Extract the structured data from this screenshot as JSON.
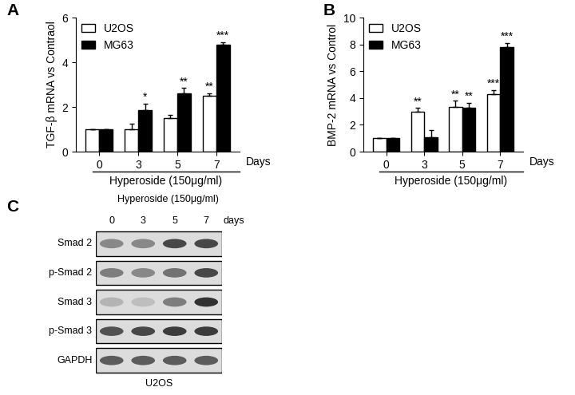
{
  "chart_data": [
    {
      "type": "bar",
      "title": "A",
      "ylabel": "TGF-β mRNA vs Contraol",
      "xlabel": "Days",
      "annotations": [
        "Hyperoside (150μg/ml)"
      ],
      "categories": [
        "0",
        "3",
        "5",
        "7"
      ],
      "series": [
        {
          "name": "U2OS",
          "color": "#ffffff",
          "values": [
            1,
            1.0,
            1.5,
            2.5
          ],
          "errors": [
            0,
            0.25,
            0.15,
            0.12
          ],
          "significance": [
            null,
            null,
            null,
            "**"
          ]
        },
        {
          "name": "MG63",
          "color": "#000000",
          "values": [
            1,
            1.85,
            2.6,
            4.8
          ],
          "errors": [
            0,
            0.3,
            0.25,
            0.1
          ],
          "significance": [
            null,
            "*",
            "**",
            "***"
          ]
        }
      ],
      "ylim": [
        0,
        6
      ],
      "yticks": [
        0,
        2,
        4,
        6
      ],
      "grid": false,
      "legend": "upper left"
    },
    {
      "type": "bar",
      "title": "B",
      "ylabel": "BMP-2 mRNA vs Control",
      "xlabel": "Days",
      "annotations": [
        "Hyperoside (150μg/ml)"
      ],
      "categories": [
        "0",
        "3",
        "5",
        "7"
      ],
      "series": [
        {
          "name": "U2OS",
          "color": "#ffffff",
          "values": [
            1,
            2.95,
            3.35,
            4.3
          ],
          "errors": [
            0,
            0.3,
            0.45,
            0.3
          ],
          "significance": [
            null,
            "**",
            "**",
            "***"
          ]
        },
        {
          "name": "MG63",
          "color": "#000000",
          "values": [
            1,
            1.05,
            3.3,
            7.8
          ],
          "errors": [
            0,
            0.55,
            0.35,
            0.3
          ],
          "significance": [
            null,
            null,
            "**",
            "***"
          ]
        }
      ],
      "ylim": [
        0,
        10
      ],
      "yticks": [
        0,
        2,
        4,
        6,
        8,
        10
      ],
      "grid": false,
      "legend": "upper left"
    }
  ],
  "blot": {
    "title": "C",
    "treatment": "Hyperoside (150μg/ml)",
    "lanes": [
      "0",
      "3",
      "5",
      "7"
    ],
    "lane_unit": "days",
    "rows": [
      {
        "label": "Smad 2",
        "bands": [
          0.55,
          0.55,
          0.85,
          0.85
        ]
      },
      {
        "label": "p-Smad 2",
        "bands": [
          0.6,
          0.55,
          0.65,
          0.85
        ]
      },
      {
        "label": "Smad 3",
        "bands": [
          0.35,
          0.3,
          0.6,
          0.95
        ]
      },
      {
        "label": "p-Smad 3",
        "bands": [
          0.8,
          0.85,
          0.9,
          0.9
        ]
      },
      {
        "label": "GAPDH",
        "bands": [
          0.75,
          0.75,
          0.75,
          0.75
        ]
      }
    ],
    "caption": "U2OS"
  }
}
